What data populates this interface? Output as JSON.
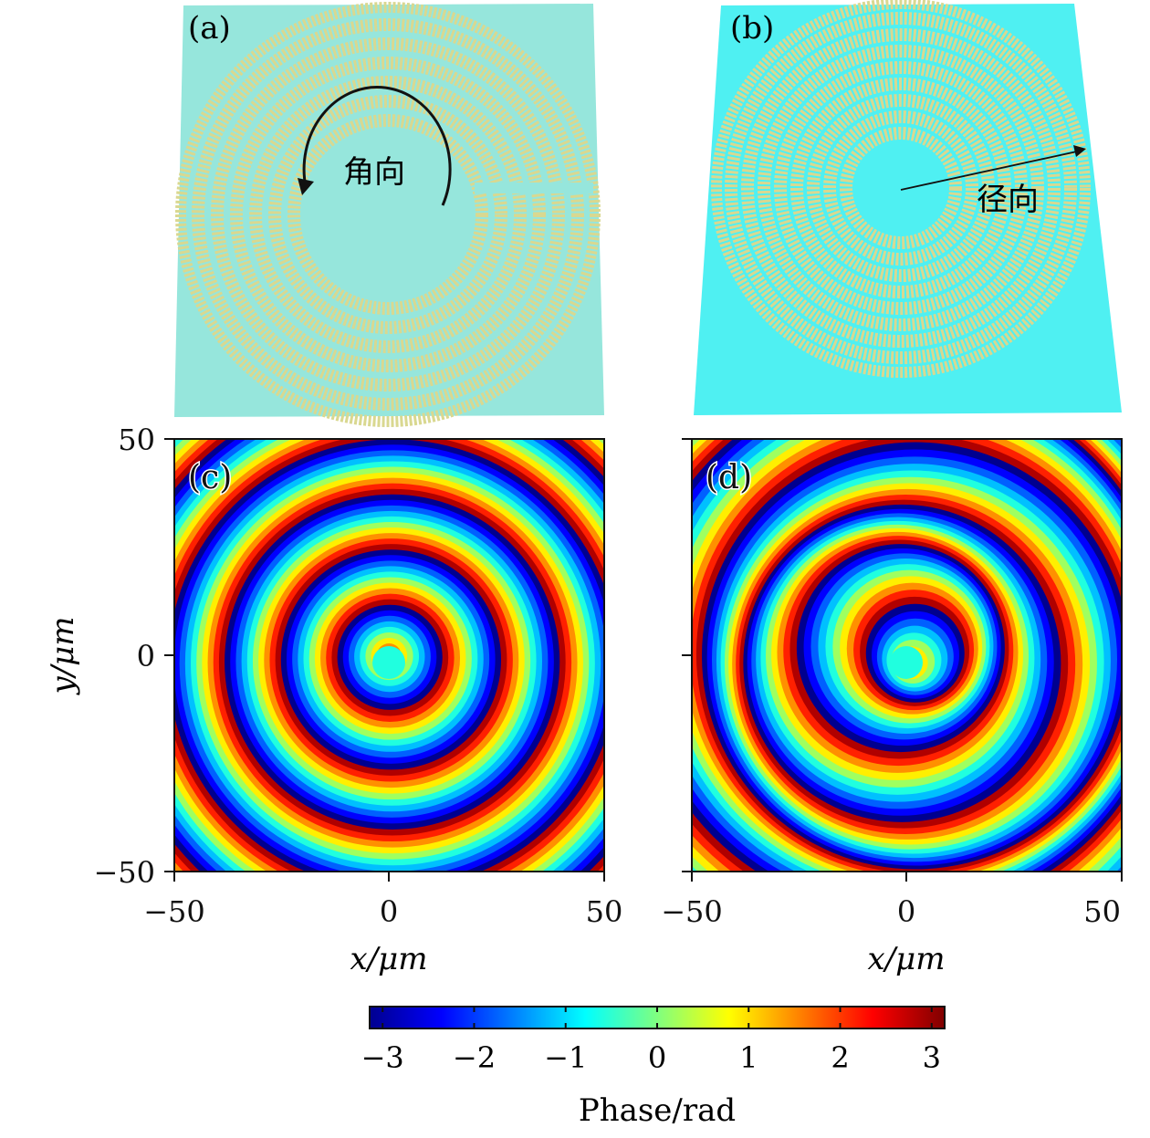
{
  "panels": {
    "a": {
      "label": "(a)",
      "annotation": "角向"
    },
    "b": {
      "label": "(b)",
      "annotation": "径向"
    },
    "c": {
      "label": "(c)"
    },
    "d": {
      "label": "(d)"
    }
  },
  "axes": {
    "xlabel": "x/μm",
    "ylabel": "y/μm",
    "xticks": [
      "−50",
      "0",
      "50"
    ],
    "yticks": [
      "50",
      "0",
      "−50"
    ]
  },
  "colorbar": {
    "label": "Phase/rad",
    "ticks": [
      "−3",
      "−2",
      "−1",
      "0",
      "1",
      "2",
      "3"
    ],
    "range": [
      -3.14159,
      3.14159
    ],
    "colormap": "jet"
  },
  "colors": {
    "metasurface_a_bg": "#96e6dc",
    "metasurface_b_bg": "#4ff0f2",
    "metasurface_atoms": "#d9d890"
  }
}
